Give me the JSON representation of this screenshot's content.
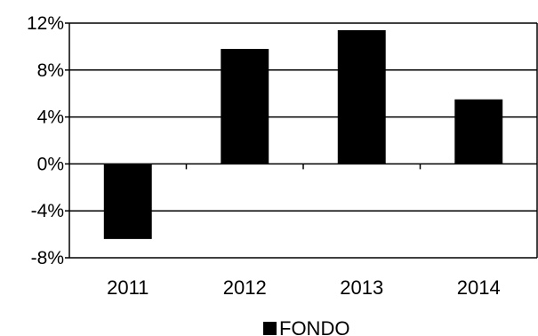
{
  "chart_data": {
    "type": "bar",
    "categories": [
      "2011",
      "2012",
      "2013",
      "2014"
    ],
    "series": [
      {
        "name": "FONDO",
        "values": [
          -6.4,
          9.8,
          11.4,
          5.5
        ]
      }
    ],
    "yticks": [
      "12%",
      "8%",
      "4%",
      "0%",
      "-4%",
      "-8%"
    ],
    "ylim": [
      -8,
      12
    ],
    "grid": true,
    "legend_position": "bottom",
    "colors": {
      "bar": "#000000",
      "grid": "#000000",
      "background": "#ffffff"
    }
  }
}
